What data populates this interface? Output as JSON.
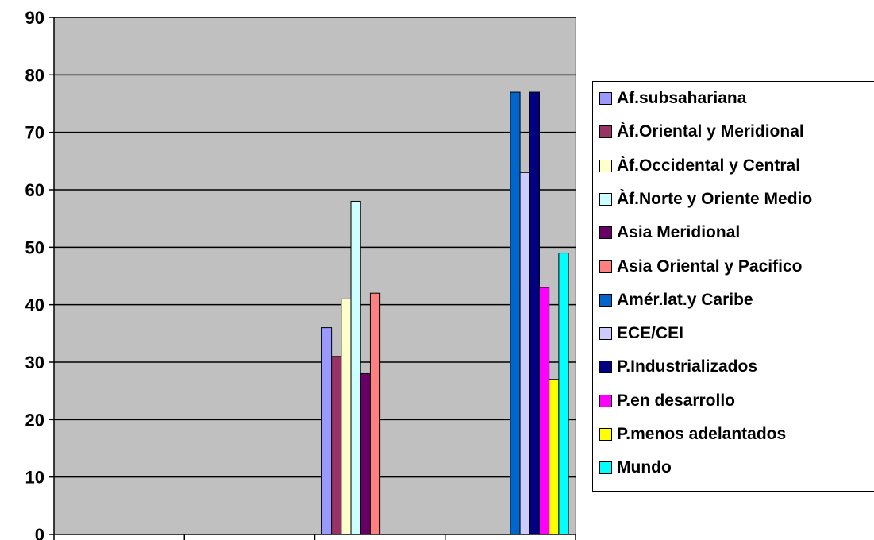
{
  "chart_data": {
    "type": "bar",
    "title": "",
    "xlabel": "",
    "ylabel": "",
    "ylim": [
      0,
      90
    ],
    "yticks": [
      "0",
      "10",
      "20",
      "30",
      "40",
      "50",
      "60",
      "70",
      "80",
      "90"
    ],
    "categories": [
      "",
      "",
      "",
      ""
    ],
    "grid": true,
    "legend_position": "right",
    "plot_background": "#c0c0c0",
    "series": [
      {
        "name": "Af.subsahariana",
        "color": "#9999ff",
        "values": [
          null,
          null,
          36,
          null
        ]
      },
      {
        "name": "Àf.Oriental y Meridional",
        "color": "#993366",
        "values": [
          null,
          null,
          31,
          null
        ]
      },
      {
        "name": "Àf.Occidental y Central",
        "color": "#ffffcc",
        "values": [
          null,
          null,
          41,
          null
        ]
      },
      {
        "name": "Àf.Norte y Oriente Medio",
        "color": "#ccffff",
        "values": [
          null,
          null,
          58,
          null
        ]
      },
      {
        "name": "Asia Meridional",
        "color": "#660066",
        "values": [
          null,
          null,
          28,
          null
        ]
      },
      {
        "name": "Asia Oriental y Pacifico",
        "color": "#ff8080",
        "values": [
          null,
          null,
          42,
          null
        ]
      },
      {
        "name": "Amér.lat.y Caribe",
        "color": "#0066cc",
        "values": [
          null,
          null,
          null,
          77
        ]
      },
      {
        "name": "ECE/CEI",
        "color": "#ccccff",
        "values": [
          null,
          null,
          null,
          63
        ]
      },
      {
        "name": "P.Industrializados",
        "color": "#000080",
        "values": [
          null,
          null,
          null,
          77
        ]
      },
      {
        "name": "P.en desarrollo",
        "color": "#ff00ff",
        "values": [
          null,
          null,
          null,
          43
        ]
      },
      {
        "name": "P.menos adelantados",
        "color": "#ffff00",
        "values": [
          null,
          null,
          null,
          27
        ]
      },
      {
        "name": "Mundo",
        "color": "#00ffff",
        "values": [
          null,
          null,
          null,
          49
        ]
      }
    ]
  }
}
